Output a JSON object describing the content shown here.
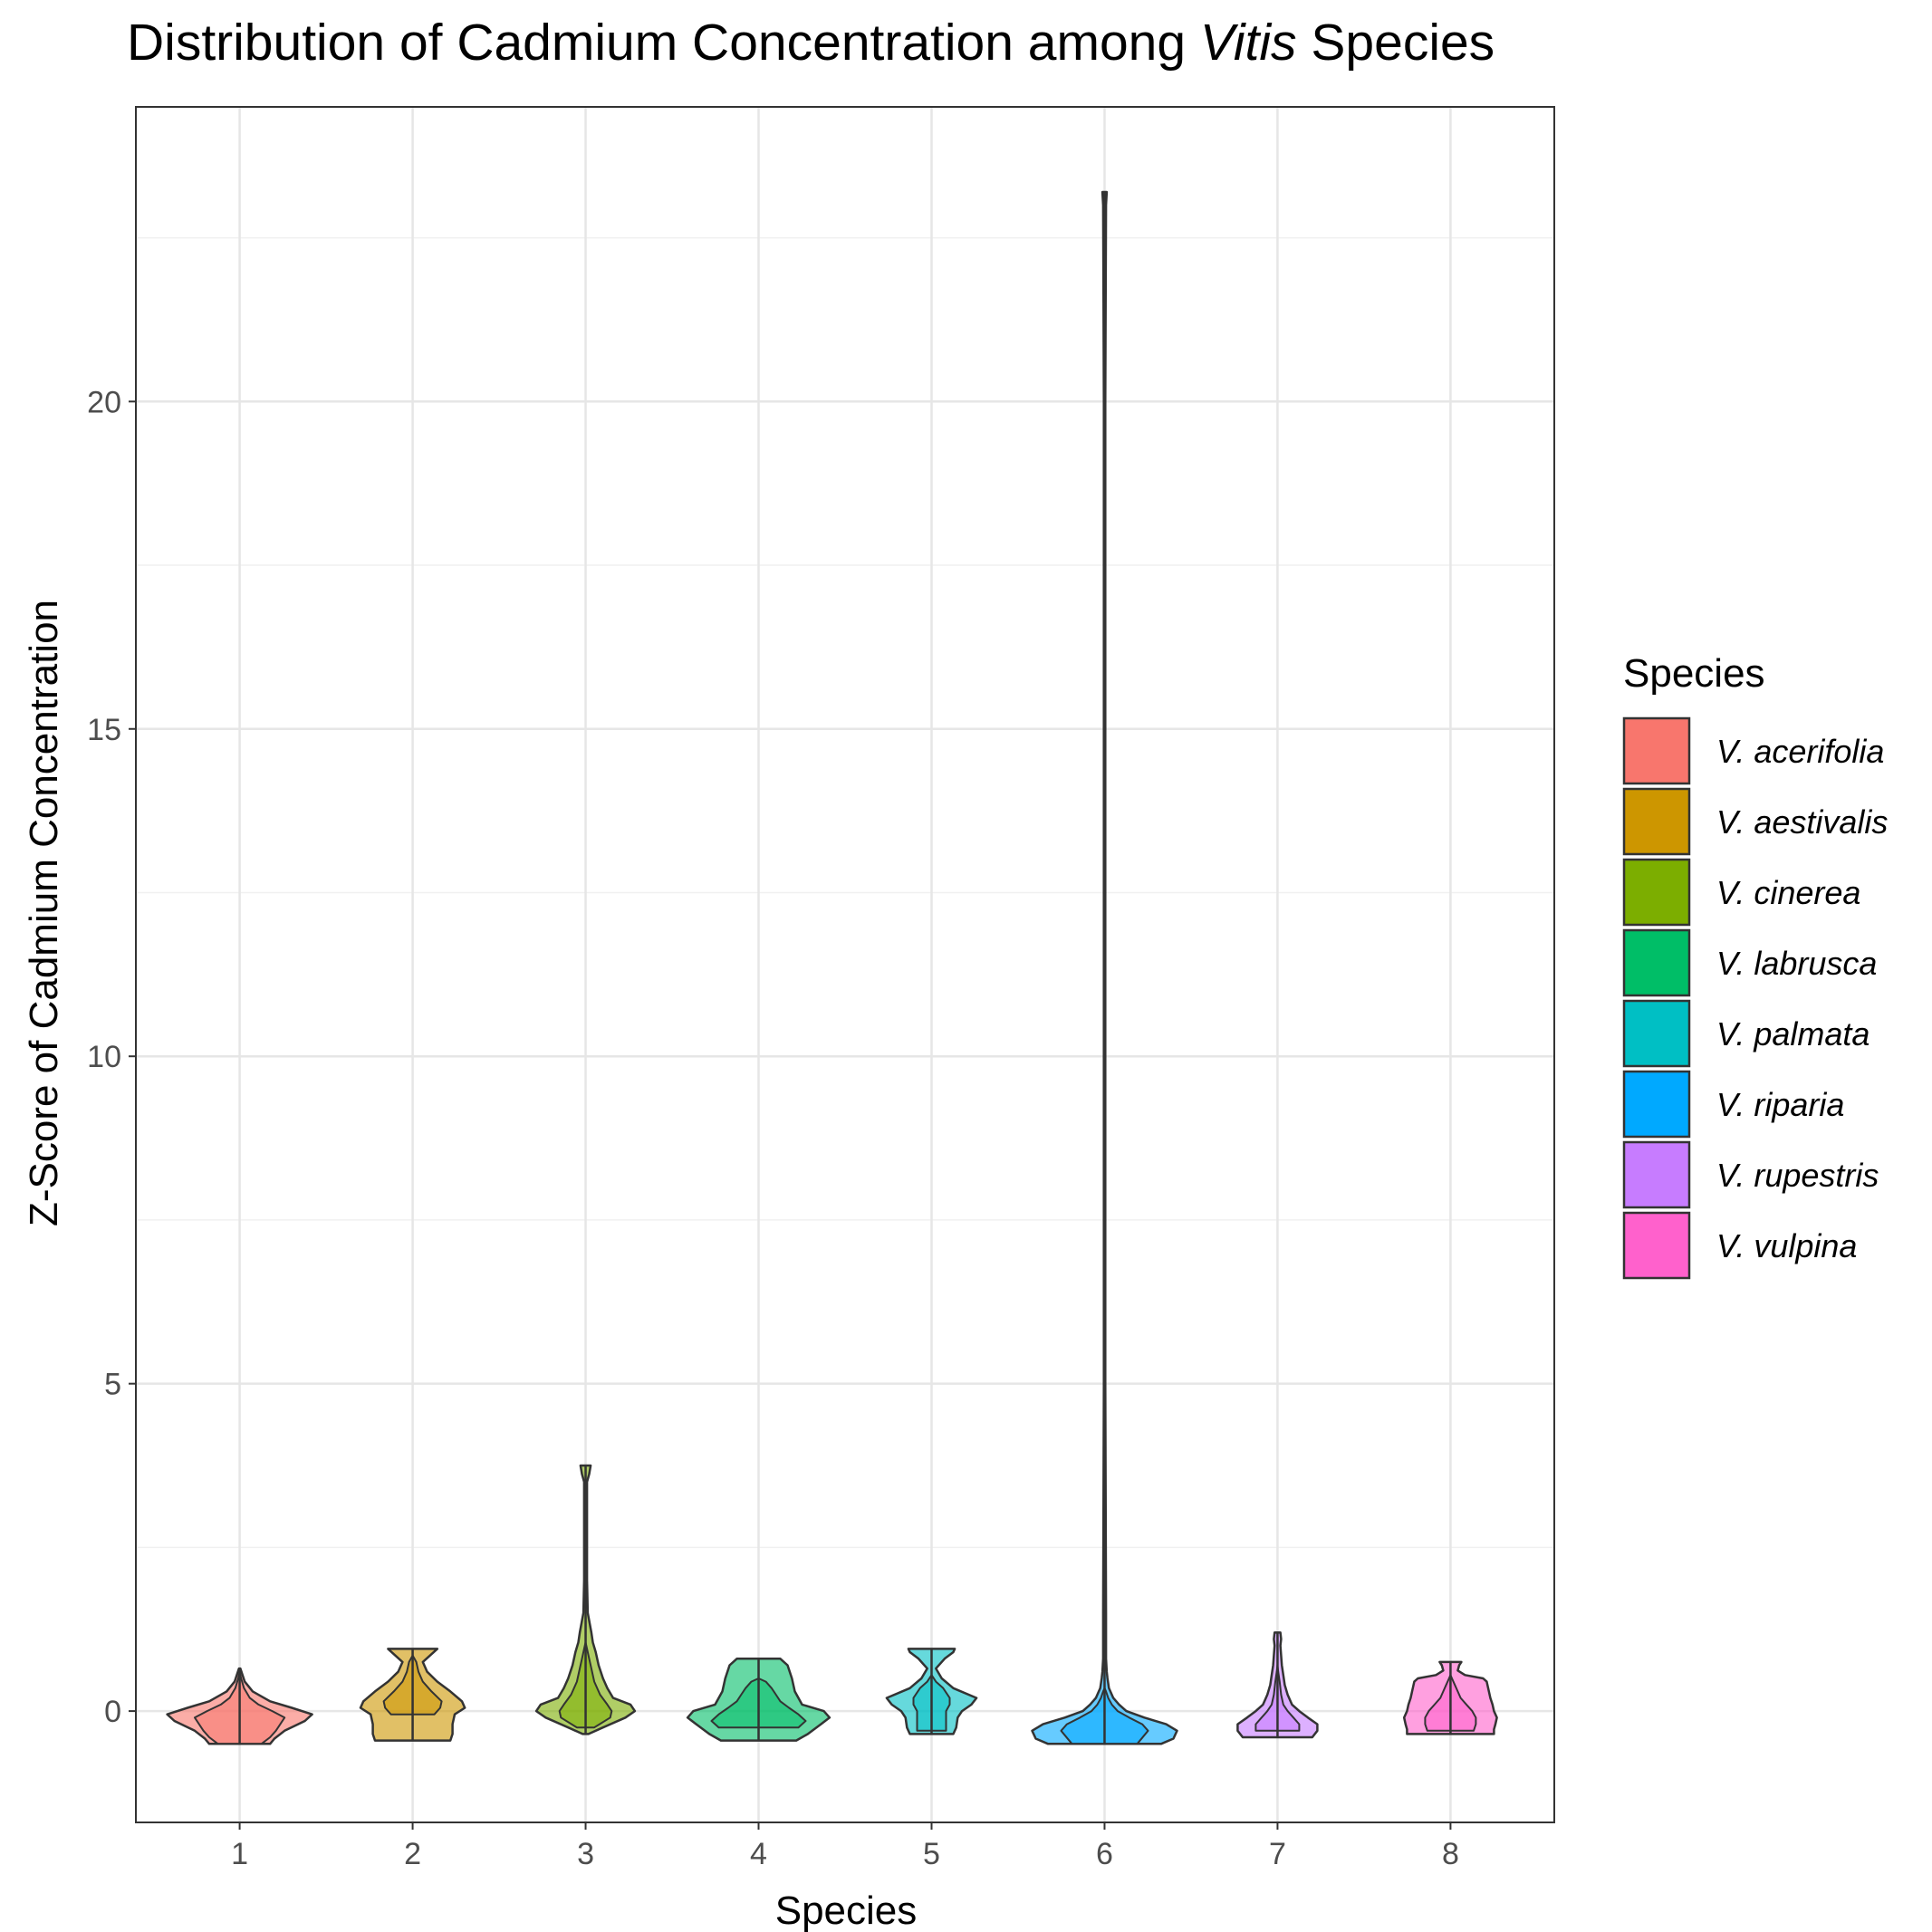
{
  "chart_data": {
    "type": "violin",
    "title": {
      "prefix": "Distribution of Cadmium Concentration among ",
      "italic": "Vitis",
      "suffix": " Species"
    },
    "xlabel": "Species",
    "ylabel": "Z-Score of Cadmium Concentration",
    "categories": [
      "1",
      "2",
      "3",
      "4",
      "5",
      "6",
      "7",
      "8"
    ],
    "ylim": [
      -1.7,
      24.5
    ],
    "yticks": [
      0,
      5,
      10,
      15,
      20
    ],
    "ytick_labels": [
      "0",
      "5",
      "10",
      "15",
      "20"
    ],
    "grid": true,
    "legend": {
      "title": "Species",
      "position": "right"
    },
    "series": [
      {
        "name": "V. acerifolia",
        "color": "#F8766D",
        "min": -0.5,
        "max": 0.65,
        "violin": [
          [
            -0.5,
            0.42
          ],
          [
            -0.42,
            0.48
          ],
          [
            -0.3,
            0.62
          ],
          [
            -0.15,
            0.9
          ],
          [
            -0.05,
            1.0
          ],
          [
            0.05,
            0.72
          ],
          [
            0.15,
            0.42
          ],
          [
            0.3,
            0.18
          ],
          [
            0.45,
            0.07
          ],
          [
            0.65,
            0.01
          ]
        ],
        "inner": [
          [
            -0.5,
            0.3
          ],
          [
            -0.4,
            0.42
          ],
          [
            -0.3,
            0.5
          ],
          [
            -0.2,
            0.56
          ],
          [
            -0.1,
            0.62
          ],
          [
            0.0,
            0.45
          ],
          [
            0.1,
            0.26
          ],
          [
            0.2,
            0.14
          ],
          [
            0.35,
            0.06
          ],
          [
            0.5,
            0.02
          ],
          [
            0.6,
            0.0
          ]
        ]
      },
      {
        "name": "V. aestivalis",
        "color": "#CD9600",
        "min": -0.45,
        "max": 0.95,
        "violin": [
          [
            -0.45,
            0.52
          ],
          [
            -0.35,
            0.55
          ],
          [
            -0.2,
            0.55
          ],
          [
            -0.05,
            0.58
          ],
          [
            0.05,
            0.72
          ],
          [
            0.15,
            0.68
          ],
          [
            0.3,
            0.52
          ],
          [
            0.45,
            0.34
          ],
          [
            0.6,
            0.2
          ],
          [
            0.75,
            0.14
          ],
          [
            0.85,
            0.24
          ],
          [
            0.95,
            0.34
          ]
        ],
        "inner": [
          [
            -0.05,
            0.3
          ],
          [
            0.05,
            0.38
          ],
          [
            0.15,
            0.4
          ],
          [
            0.3,
            0.26
          ],
          [
            0.45,
            0.14
          ],
          [
            0.6,
            0.08
          ],
          [
            0.75,
            0.05
          ],
          [
            0.85,
            0.0
          ]
        ]
      },
      {
        "name": "V. cinerea",
        "color": "#7CAE00",
        "min": -0.35,
        "max": 3.75,
        "violin": [
          [
            -0.35,
            0.04
          ],
          [
            -0.25,
            0.24
          ],
          [
            -0.1,
            0.55
          ],
          [
            0.0,
            0.68
          ],
          [
            0.1,
            0.62
          ],
          [
            0.2,
            0.38
          ],
          [
            0.35,
            0.3
          ],
          [
            0.5,
            0.24
          ],
          [
            0.7,
            0.18
          ],
          [
            0.9,
            0.14
          ],
          [
            1.05,
            0.1
          ],
          [
            1.2,
            0.08
          ],
          [
            1.5,
            0.03
          ],
          [
            2.0,
            0.02
          ],
          [
            2.5,
            0.02
          ],
          [
            3.0,
            0.02
          ],
          [
            3.5,
            0.02
          ],
          [
            3.62,
            0.05
          ],
          [
            3.75,
            0.07
          ]
        ],
        "inner": [
          [
            -0.25,
            0.12
          ],
          [
            -0.1,
            0.34
          ],
          [
            0.0,
            0.36
          ],
          [
            0.1,
            0.3
          ],
          [
            0.25,
            0.2
          ],
          [
            0.45,
            0.12
          ],
          [
            0.65,
            0.08
          ],
          [
            0.8,
            0.05
          ],
          [
            0.95,
            0.02
          ],
          [
            1.05,
            0.0
          ]
        ]
      },
      {
        "name": "V. labrusca",
        "color": "#00BE67",
        "min": -0.45,
        "max": 0.8,
        "violin": [
          [
            -0.45,
            0.52
          ],
          [
            -0.35,
            0.68
          ],
          [
            -0.2,
            0.86
          ],
          [
            -0.1,
            0.98
          ],
          [
            0.0,
            0.9
          ],
          [
            0.1,
            0.6
          ],
          [
            0.3,
            0.5
          ],
          [
            0.5,
            0.46
          ],
          [
            0.7,
            0.4
          ],
          [
            0.8,
            0.3
          ]
        ],
        "inner": [
          [
            -0.25,
            0.55
          ],
          [
            -0.15,
            0.65
          ],
          [
            -0.05,
            0.55
          ],
          [
            0.05,
            0.42
          ],
          [
            0.15,
            0.3
          ],
          [
            0.25,
            0.24
          ],
          [
            0.35,
            0.18
          ],
          [
            0.45,
            0.1
          ],
          [
            0.5,
            0.0
          ]
        ]
      },
      {
        "name": "V. palmata",
        "color": "#00BFC4",
        "min": -0.35,
        "max": 0.95,
        "violin": [
          [
            -0.35,
            0.3
          ],
          [
            -0.25,
            0.34
          ],
          [
            -0.1,
            0.36
          ],
          [
            0.0,
            0.42
          ],
          [
            0.1,
            0.55
          ],
          [
            0.2,
            0.62
          ],
          [
            0.35,
            0.3
          ],
          [
            0.5,
            0.14
          ],
          [
            0.65,
            0.06
          ],
          [
            0.8,
            0.18
          ],
          [
            0.9,
            0.3
          ],
          [
            0.95,
            0.32
          ]
        ],
        "inner": [
          [
            -0.3,
            0.2
          ],
          [
            0.0,
            0.2
          ],
          [
            0.1,
            0.25
          ],
          [
            0.2,
            0.25
          ],
          [
            0.35,
            0.16
          ],
          [
            0.45,
            0.06
          ],
          [
            0.55,
            0.0
          ]
        ]
      },
      {
        "name": "V. riparia",
        "color": "#00A9FF",
        "min": -0.5,
        "max": 23.2,
        "violin": [
          [
            -0.5,
            0.78
          ],
          [
            -0.42,
            0.95
          ],
          [
            -0.3,
            1.0
          ],
          [
            -0.2,
            0.85
          ],
          [
            -0.1,
            0.55
          ],
          [
            0.0,
            0.3
          ],
          [
            0.1,
            0.2
          ],
          [
            0.2,
            0.12
          ],
          [
            0.35,
            0.06
          ],
          [
            0.5,
            0.04
          ],
          [
            0.6,
            0.03
          ],
          [
            0.8,
            0.02
          ],
          [
            1.5,
            0.02
          ],
          [
            5.0,
            0.01
          ],
          [
            10.0,
            0.01
          ],
          [
            15.0,
            0.01
          ],
          [
            20.0,
            0.01
          ],
          [
            23.0,
            0.02
          ],
          [
            23.2,
            0.03
          ]
        ],
        "inner": [
          [
            -0.5,
            0.45
          ],
          [
            -0.3,
            0.6
          ],
          [
            -0.2,
            0.52
          ],
          [
            -0.1,
            0.34
          ],
          [
            0.0,
            0.18
          ],
          [
            0.1,
            0.1
          ],
          [
            0.2,
            0.05
          ],
          [
            0.3,
            0.02
          ],
          [
            0.35,
            0.0
          ]
        ]
      },
      {
        "name": "V. rupestris",
        "color": "#C77CFF",
        "min": -0.4,
        "max": 1.2,
        "violin": [
          [
            -0.4,
            0.48
          ],
          [
            -0.3,
            0.55
          ],
          [
            -0.2,
            0.55
          ],
          [
            -0.1,
            0.42
          ],
          [
            0.0,
            0.3
          ],
          [
            0.1,
            0.2
          ],
          [
            0.25,
            0.14
          ],
          [
            0.4,
            0.1
          ],
          [
            0.55,
            0.08
          ],
          [
            0.7,
            0.06
          ],
          [
            0.85,
            0.05
          ],
          [
            1.0,
            0.04
          ],
          [
            1.1,
            0.05
          ],
          [
            1.2,
            0.04
          ]
        ],
        "inner": [
          [
            -0.3,
            0.3
          ],
          [
            -0.2,
            0.3
          ],
          [
            -0.1,
            0.22
          ],
          [
            0.0,
            0.14
          ],
          [
            0.1,
            0.08
          ],
          [
            0.25,
            0.05
          ],
          [
            0.45,
            0.03
          ],
          [
            0.6,
            0.01
          ],
          [
            0.7,
            0.0
          ]
        ]
      },
      {
        "name": "V. vulpina",
        "color": "#FF61CC",
        "min": -0.35,
        "max": 0.75,
        "violin": [
          [
            -0.35,
            0.6
          ],
          [
            -0.28,
            0.6
          ],
          [
            -0.2,
            0.62
          ],
          [
            -0.1,
            0.64
          ],
          [
            0.0,
            0.6
          ],
          [
            0.1,
            0.58
          ],
          [
            0.2,
            0.55
          ],
          [
            0.3,
            0.53
          ],
          [
            0.45,
            0.5
          ],
          [
            0.5,
            0.45
          ],
          [
            0.55,
            0.2
          ],
          [
            0.62,
            0.1
          ],
          [
            0.7,
            0.12
          ],
          [
            0.75,
            0.15
          ]
        ],
        "inner": [
          [
            -0.3,
            0.32
          ],
          [
            -0.2,
            0.35
          ],
          [
            -0.1,
            0.35
          ],
          [
            0.0,
            0.3
          ],
          [
            0.1,
            0.22
          ],
          [
            0.2,
            0.14
          ],
          [
            0.3,
            0.1
          ],
          [
            0.4,
            0.06
          ],
          [
            0.5,
            0.02
          ],
          [
            0.55,
            0.0
          ]
        ]
      }
    ]
  }
}
